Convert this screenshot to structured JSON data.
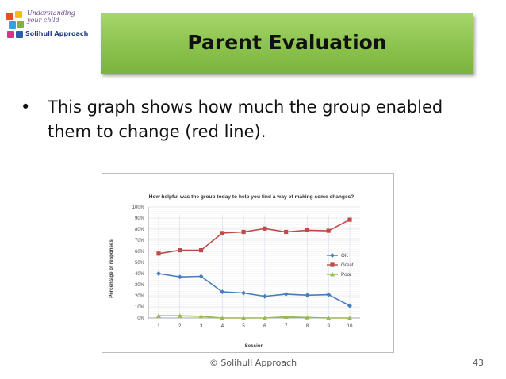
{
  "logo": {
    "text_top": "Understanding your child",
    "text_bottom": "Solihull Approach",
    "tile_colors": [
      "#e94e1b",
      "#f6c000",
      "#3aa0d8",
      "#7cb342",
      "#d0368a",
      "#2c5ea8"
    ]
  },
  "slide": {
    "title": "Parent Evaluation",
    "bullet": "This graph shows how much the group enabled them to change (red line).",
    "footer": "© Solihull Approach",
    "page_number": "43",
    "banner_color": "#8cc24e"
  },
  "chart_data": {
    "type": "line",
    "title": "How helpful was the group today to help you find a way of making some changes?",
    "xlabel": "Session",
    "ylabel": "Percentage of responses",
    "x": [
      1,
      2,
      3,
      4,
      5,
      6,
      7,
      8,
      9,
      10
    ],
    "x_tick_labels": [
      "1",
      "2",
      "3",
      "4",
      "5",
      "6",
      "7",
      "8",
      "9",
      "10"
    ],
    "ylim": [
      0,
      100
    ],
    "y_tick_labels": [
      "0%",
      "10%",
      "20%",
      "30%",
      "40%",
      "50%",
      "60%",
      "70%",
      "80%",
      "90%",
      "100%"
    ],
    "grid": true,
    "legend_position": "right",
    "series": [
      {
        "name": "OK",
        "color": "#4a7ebb",
        "marker": "diamond",
        "values": [
          40,
          37,
          37.5,
          23.5,
          22.5,
          19.5,
          21.5,
          20.5,
          21,
          11
        ]
      },
      {
        "name": "Great",
        "color": "#be4b48",
        "marker": "square",
        "values": [
          58,
          61,
          61,
          76.5,
          77.5,
          80.5,
          77.5,
          79,
          78.5,
          88.5
        ]
      },
      {
        "name": "Poor",
        "color": "#98b954",
        "marker": "triangle",
        "values": [
          2,
          2,
          1.5,
          0,
          0,
          0,
          1,
          0.5,
          0,
          0
        ]
      }
    ]
  }
}
